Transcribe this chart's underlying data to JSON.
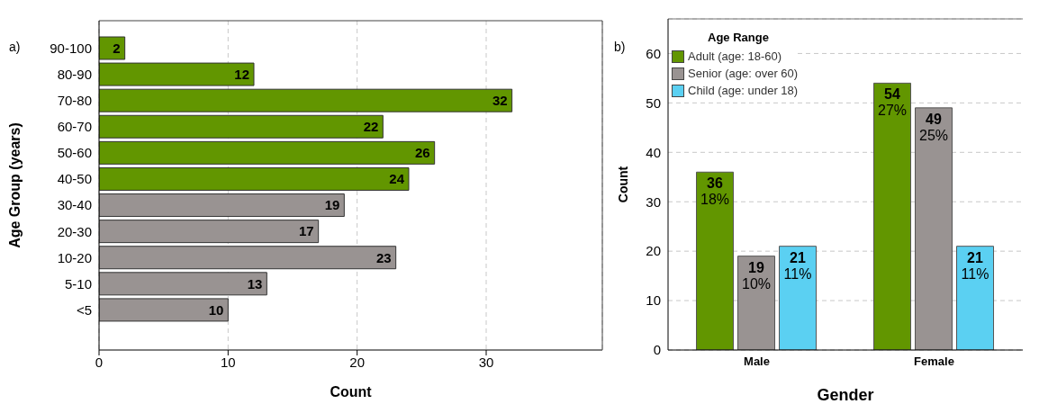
{
  "chart_data": [
    {
      "type": "bar",
      "orientation": "horizontal",
      "xlabel": "Count",
      "ylabel": "Age Group (years)",
      "annotations": [
        "a)"
      ],
      "categories": [
        "90-100",
        "80-90",
        "70-80",
        "60-70",
        "50-60",
        "40-50",
        "30-40",
        "20-30",
        "10-20",
        "5-10",
        "<5"
      ],
      "values": [
        2,
        12,
        32,
        22,
        26,
        24,
        19,
        17,
        23,
        13,
        10
      ],
      "colors": [
        "#629600",
        "#629600",
        "#629600",
        "#629600",
        "#629600",
        "#629600",
        "#999392",
        "#999392",
        "#999392",
        "#999392",
        "#999392"
      ],
      "xlim": [
        0,
        39
      ],
      "xticks": [
        0,
        10,
        20,
        30
      ],
      "grid": "x",
      "data_labels": true
    },
    {
      "type": "bar",
      "xlabel": "Gender",
      "ylabel": "Count",
      "annotations": [
        "b)"
      ],
      "legend_title": "Age Range",
      "legend": "top left",
      "categories": [
        "Male",
        "Female"
      ],
      "series": [
        {
          "name": "Adult (age: 18-60)",
          "color": "#629600",
          "values": [
            36,
            54
          ],
          "value_labels": [
            "36\n18%",
            "54\n27%"
          ]
        },
        {
          "name": "Senior (age: over 60)",
          "color": "#999392",
          "values": [
            19,
            49
          ],
          "value_labels": [
            "19\n10%",
            "49\n25%"
          ]
        },
        {
          "name": "Child (age: under 18)",
          "color": "#5bd0f2",
          "values": [
            21,
            21
          ],
          "value_labels": [
            "21\n11%",
            "21\n11%"
          ]
        }
      ],
      "ylim": [
        0,
        67
      ],
      "yticks": [
        0,
        10,
        20,
        30,
        40,
        50,
        60
      ],
      "grid": "y"
    }
  ]
}
